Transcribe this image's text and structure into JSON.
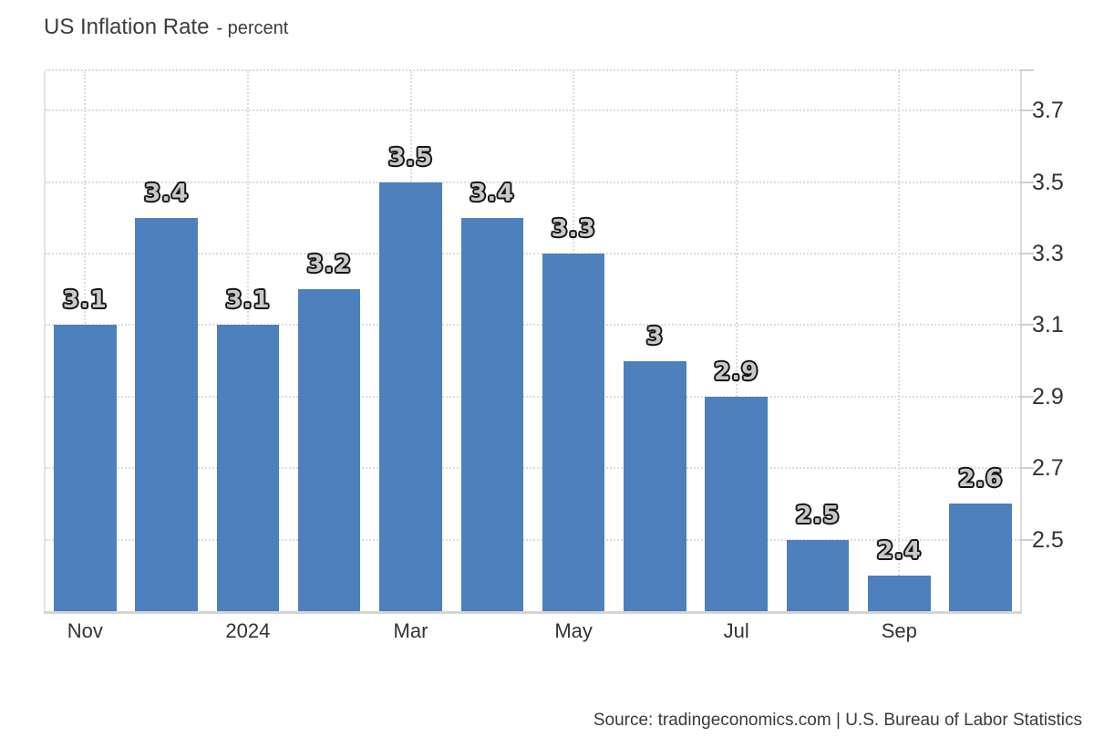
{
  "header": {
    "title": "US Inflation Rate",
    "subtitle": "- percent"
  },
  "footer": {
    "source_text": "Source: tradingeconomics.com | U.S. Bureau of Labor Statistics"
  },
  "colors": {
    "bar_fill": "#4d80bd",
    "grid_line": "#dcdcdc",
    "axis_line": "#d5d5d5",
    "axis_text": "#333333",
    "title_text": "#3c3c3c",
    "bar_label_fill": "#c9c9c9",
    "bar_label_outline": "#151515",
    "background": "#ffffff"
  },
  "chart_data": {
    "type": "bar",
    "title": "US Inflation Rate",
    "unit_label": "percent",
    "values": [
      3.1,
      3.4,
      3.1,
      3.2,
      3.5,
      3.4,
      3.3,
      3,
      2.9,
      2.5,
      2.4,
      2.6
    ],
    "bar_value_labels": [
      "3.1",
      "3.4",
      "3.1",
      "3.2",
      "3.5",
      "3.4",
      "3.3",
      "3",
      "2.9",
      "2.5",
      "2.4",
      "2.6"
    ],
    "x_tick_labels": [
      "Nov",
      "2024",
      "Mar",
      "May",
      "Jul",
      "Sep"
    ],
    "x_tick_bar_indexes": [
      0,
      2,
      4,
      6,
      8,
      10
    ],
    "y_tick_values": [
      3.7,
      3.5,
      3.3,
      3.1,
      2.9,
      2.7,
      2.5
    ],
    "ylim": [
      2.3,
      3.81
    ],
    "grid": "dotted",
    "legend": "none",
    "bar_orientation": "vertical",
    "y_axis_side": "right"
  }
}
